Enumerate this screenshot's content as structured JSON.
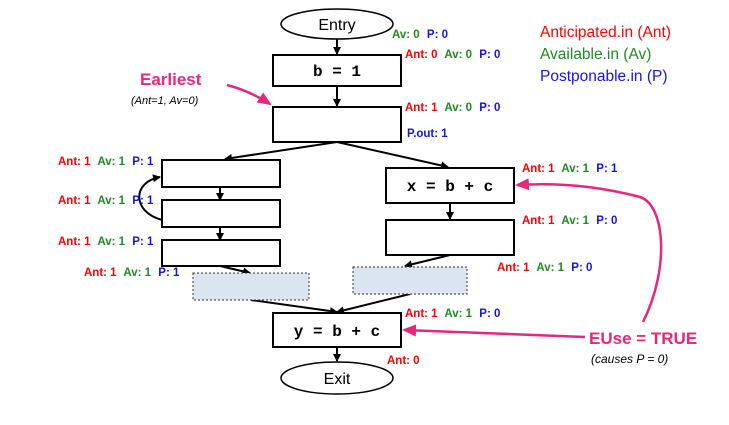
{
  "colors": {
    "ant": "#ff0000",
    "av": "#1e8c1e",
    "p": "#1515e0",
    "highlight": "#e8267a",
    "spill_fill": "#dbe5f1"
  },
  "nodes": {
    "entry": "Entry",
    "exit": "Exit",
    "b_assign": "b = 1",
    "x_assign": "x = b + c",
    "y_assign": "y = b + c"
  },
  "legend": {
    "anticipated": "Anticipated.in (Ant)",
    "available": "Available.in (Av)",
    "postponable": "Postponable.in (P)"
  },
  "annotations": {
    "earliest": "Earliest",
    "earliest_cond": "(Ant=1, Av=0)",
    "euse": "EUse = TRUE",
    "euse_note": "(causes P = 0)",
    "p_out": "P.out: 1"
  },
  "flow_values": {
    "entry_out": {
      "av": "Av: 0",
      "p": "P: 0"
    },
    "b_in": {
      "ant": "Ant: 0",
      "av": "Av: 0",
      "p": "P: 0"
    },
    "earliest_in": {
      "ant": "Ant: 1",
      "av": "Av: 0",
      "p": "P: 0"
    },
    "l1_in": {
      "ant": "Ant: 1",
      "av": "Av: 1",
      "p": "P: 1"
    },
    "l2_in": {
      "ant": "Ant: 1",
      "av": "Av: 1",
      "p": "P: 1"
    },
    "l3_in": {
      "ant": "Ant: 1",
      "av": "Av: 1",
      "p": "P: 1"
    },
    "lspill_in": {
      "ant": "Ant: 1",
      "av": "Av: 1",
      "p": "P: 1"
    },
    "x_in": {
      "ant": "Ant: 1",
      "av": "Av: 1",
      "p": "P: 1"
    },
    "r2_in": {
      "ant": "Ant: 1",
      "av": "Av: 1",
      "p": "P: 0"
    },
    "rspill_in": {
      "ant": "Ant: 1",
      "av": "Av: 1",
      "p": "P: 0"
    },
    "y_in": {
      "ant": "Ant: 1",
      "av": "Av: 1",
      "p": "P: 0"
    },
    "exit_in": {
      "ant": "Ant: 0"
    }
  }
}
